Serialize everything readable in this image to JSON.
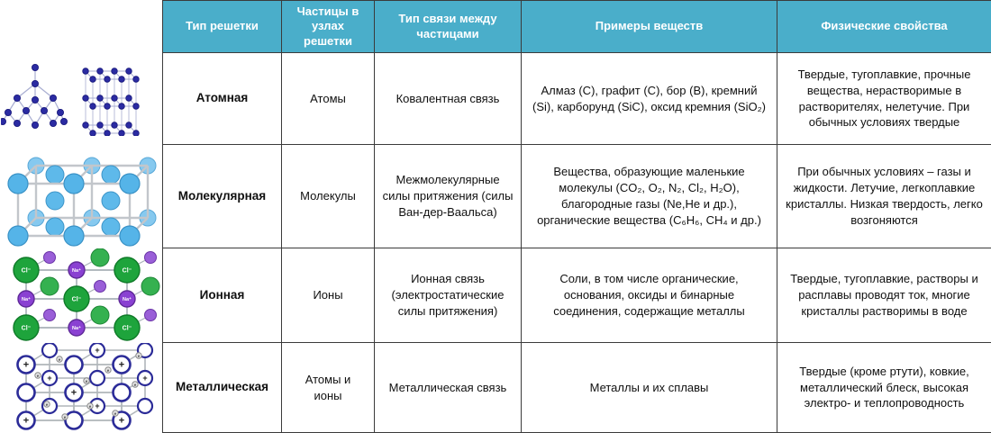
{
  "colors": {
    "header_bg": "#4aaeca",
    "header_text": "#ffffff",
    "border": "#3b3b3b",
    "atomic_sphere": "#2b2ba2",
    "molecular_sphere": "#55b4e8",
    "chloride_sphere": "#1ea43c",
    "sodium_sphere": "#8a41d2",
    "metallic_outline": "#2b2b98"
  },
  "table": {
    "headers": [
      "Тип решетки",
      "Частицы в узлах решетки",
      "Тип связи между частицами",
      "Примеры веществ",
      "Физические свойства"
    ],
    "rows": [
      {
        "type": "Атомная",
        "particles": "Атомы",
        "bond": "Ковалентная связь",
        "examples": "Алмаз (C), графит (C), бор (B), кремний (Si), карборунд (SiC), оксид кремния (SiO₂)",
        "properties": "Твердые, тугоплавкие, прочные вещества, нерастворимые в растворителях, нелетучие. При обычных условиях твердые"
      },
      {
        "type": "Молекулярная",
        "particles": "Молекулы",
        "bond": "Межмолекулярные силы притяжения (силы Ван-дер-Ваальса)",
        "examples": "Вещества, образующие маленькие молекулы (CO₂, O₂, N₂, Cl₂, H₂O), благородные газы (Ne,He и др.), органические вещества (C₆H₆, CH₄ и др.)",
        "properties": "При обычных условиях – газы и жидкости. Летучие, легкоплавкие кристаллы. Низкая твердость, легко возгоняются"
      },
      {
        "type": "Ионная",
        "particles": "Ионы",
        "bond": "Ионная связь (электростатические силы притяжения)",
        "examples": "Соли, в том числе органические, основания, оксиды и бинарные соединения, содержащие металлы",
        "properties": "Твердые, тугоплавкие, растворы и расплавы проводят ток, многие кристаллы растворимы в воде"
      },
      {
        "type": "Металлическая",
        "particles": "Атомы и ионы",
        "bond": "Металлическая связь",
        "examples": "Металлы и их сплавы",
        "properties": "Твердые (кроме ртути), ковкие, металлический блеск, высокая электро- и теплопроводность"
      }
    ]
  },
  "illustrations": {
    "atomic": {
      "description": "diamond and graphite lattice models"
    },
    "molecular": {
      "description": "molecular lattice cube with blue spheres"
    },
    "ionic": {
      "description": "NaCl ionic lattice model",
      "chloride_label": "Cl⁻",
      "sodium_label": "Na⁺"
    },
    "metallic": {
      "description": "metallic lattice scheme with ions and free electrons",
      "ion_label": "+",
      "electron_label": "e"
    }
  }
}
